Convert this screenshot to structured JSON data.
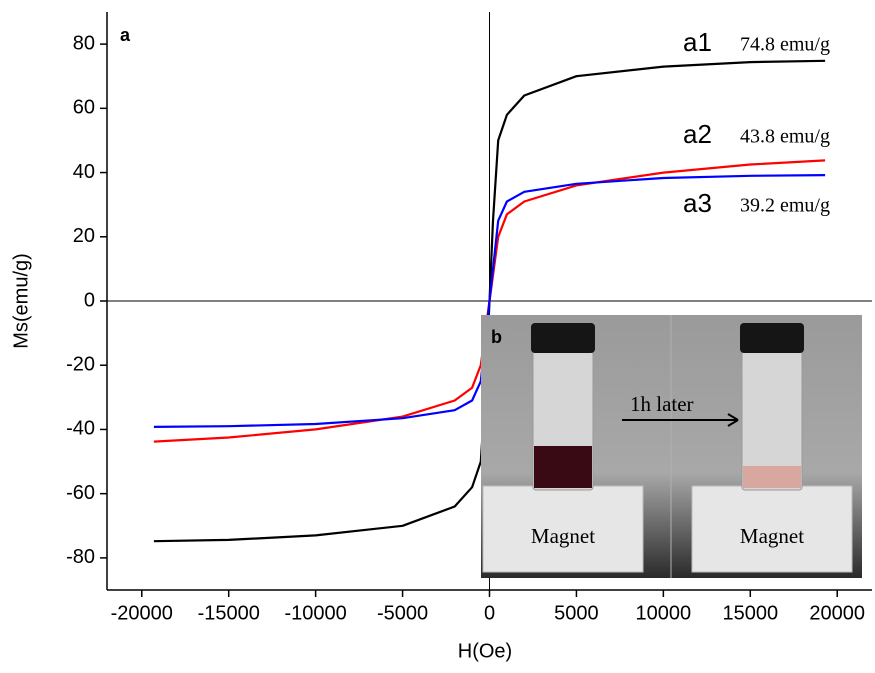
{
  "chart_data": {
    "type": "line",
    "panel_label": "a",
    "x_label": "H(Oe)",
    "y_label": "Ms(emu/g)",
    "x": [
      -19300,
      -15000,
      -10000,
      -5000,
      -2000,
      -1000,
      -500,
      -200,
      0,
      200,
      500,
      1000,
      2000,
      5000,
      10000,
      15000,
      19300
    ],
    "series": [
      {
        "name": "a1",
        "color": "#000000",
        "values": [
          -74.8,
          -74.4,
          -73,
          -70,
          -64,
          -58,
          -50,
          -25,
          0,
          25,
          50,
          58,
          64,
          70,
          73,
          74.4,
          74.8
        ]
      },
      {
        "name": "a2",
        "color": "#ff0000",
        "values": [
          -43.8,
          -42.5,
          -40,
          -36,
          -31,
          -27,
          -20,
          -8,
          0,
          8,
          20,
          27,
          31,
          36,
          40,
          42.5,
          43.8
        ]
      },
      {
        "name": "a3",
        "color": "#0000ff",
        "values": [
          -39.2,
          -39,
          -38.3,
          -36.5,
          -34,
          -31,
          -25,
          -10,
          0,
          10,
          25,
          31,
          34,
          36.5,
          38.3,
          39,
          39.2
        ]
      }
    ],
    "annotations": [
      "74.8 emu/g",
      "43.8 emu/g",
      "39.2 emu/g"
    ],
    "xlim": [
      -22000,
      22000
    ],
    "ylim": [
      -90,
      90
    ],
    "xticks": [
      -20000,
      -15000,
      -10000,
      -5000,
      0,
      5000,
      10000,
      15000,
      20000
    ],
    "yticks": [
      -80,
      -60,
      -40,
      -20,
      0,
      20,
      40,
      60,
      80
    ],
    "inset": {
      "label": "b",
      "caption": "1h later",
      "magnet_labels": [
        "Magnet",
        "Magnet"
      ]
    }
  }
}
